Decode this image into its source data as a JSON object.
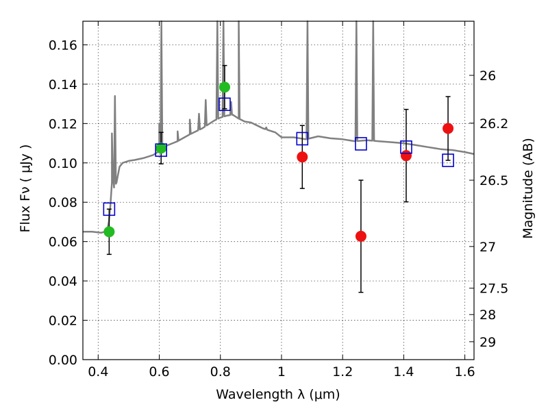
{
  "chart_data": {
    "type": "scatter",
    "xlabel": "Wavelength  λ (μm)",
    "ylabel": "Flux  Fν  ( μJy )",
    "ylabel_right": "Magnitude (AB)",
    "xlim": [
      0.35,
      1.63
    ],
    "ylim": [
      0.0,
      0.172
    ],
    "x_ticks": [
      0.4,
      0.6,
      0.8,
      1.0,
      1.2,
      1.4,
      1.6
    ],
    "x_tick_labels": [
      "0.4",
      "0.6",
      "0.8",
      "1",
      "1.2",
      "1.4",
      "1.6"
    ],
    "y_ticks": [
      0.0,
      0.02,
      0.04,
      0.06,
      0.08,
      0.1,
      0.12,
      0.14,
      0.16
    ],
    "y_tick_labels": [
      "0.00",
      "0.02",
      "0.04",
      "0.06",
      "0.08",
      "0.10",
      "0.12",
      "0.14",
      "0.16"
    ],
    "right_ticks": [
      {
        "label": "26",
        "flux": 0.1445
      },
      {
        "label": "26.2",
        "flux": 0.1202
      },
      {
        "label": "26.5",
        "flux": 0.0912
      },
      {
        "label": "27",
        "flux": 0.0575
      },
      {
        "label": "27.5",
        "flux": 0.0363
      },
      {
        "label": "28",
        "flux": 0.0229
      },
      {
        "label": "29",
        "flux": 0.0091
      }
    ],
    "grid": true,
    "series": [
      {
        "marker": "circle",
        "color": "#22bb22",
        "points": [
          {
            "x": 0.436,
            "y": 0.065,
            "err": 0.0115
          },
          {
            "x": 0.606,
            "y": 0.1075,
            "err": 0.008
          },
          {
            "x": 0.814,
            "y": 0.1385,
            "err": 0.011
          }
        ]
      },
      {
        "marker": "circle",
        "color": "#ee1111",
        "points": [
          {
            "x": 1.068,
            "y": 0.103,
            "err": 0.016
          },
          {
            "x": 1.26,
            "y": 0.0627,
            "err": 0.0285
          },
          {
            "x": 1.408,
            "y": 0.1037,
            "err": 0.0235
          },
          {
            "x": 1.545,
            "y": 0.1175,
            "err": 0.0162
          }
        ]
      },
      {
        "marker": "square",
        "color": "#0000cc",
        "points": [
          {
            "x": 0.436,
            "y": 0.0765
          },
          {
            "x": 0.606,
            "y": 0.1065
          },
          {
            "x": 0.814,
            "y": 0.1298
          },
          {
            "x": 1.068,
            "y": 0.1123
          },
          {
            "x": 1.26,
            "y": 0.1097
          },
          {
            "x": 1.408,
            "y": 0.108
          },
          {
            "x": 1.545,
            "y": 0.1013
          }
        ]
      }
    ],
    "spectrum": {
      "color": "#808080",
      "x": [
        0.35,
        0.38,
        0.41,
        0.425,
        0.43,
        0.435,
        0.44,
        0.445,
        0.448,
        0.452,
        0.46,
        0.47,
        0.48,
        0.5,
        0.52,
        0.55,
        0.58,
        0.6,
        0.62,
        0.66,
        0.7,
        0.74,
        0.78,
        0.8,
        0.82,
        0.84,
        0.86,
        0.88,
        0.9,
        0.94,
        0.98,
        1.0,
        1.04,
        1.08,
        1.12,
        1.16,
        1.2,
        1.24,
        1.28,
        1.32,
        1.36,
        1.4,
        1.44,
        1.48,
        1.52,
        1.56,
        1.6,
        1.63
      ],
      "y": [
        0.065,
        0.065,
        0.0645,
        0.0652,
        0.066,
        0.07,
        0.078,
        0.09,
        0.094,
        0.0875,
        0.09,
        0.098,
        0.1,
        0.101,
        0.1015,
        0.1025,
        0.104,
        0.106,
        0.1085,
        0.111,
        0.1145,
        0.1175,
        0.1215,
        0.123,
        0.124,
        0.1245,
        0.1225,
        0.121,
        0.1205,
        0.1175,
        0.1155,
        0.113,
        0.113,
        0.112,
        0.1135,
        0.1125,
        0.112,
        0.111,
        0.1115,
        0.111,
        0.1105,
        0.11,
        0.109,
        0.108,
        0.107,
        0.1065,
        0.1055,
        0.1045
      ],
      "spikes": [
        {
          "x": 0.445,
          "h": 0.115
        },
        {
          "x": 0.455,
          "h": 0.134
        },
        {
          "x": 0.6,
          "h": 0.12
        },
        {
          "x": 0.607,
          "h": 0.172
        },
        {
          "x": 0.66,
          "h": 0.116
        },
        {
          "x": 0.7,
          "h": 0.122
        },
        {
          "x": 0.73,
          "h": 0.125
        },
        {
          "x": 0.752,
          "h": 0.132
        },
        {
          "x": 0.79,
          "h": 0.172
        },
        {
          "x": 0.81,
          "h": 0.172
        },
        {
          "x": 0.835,
          "h": 0.131
        },
        {
          "x": 0.86,
          "h": 0.172
        },
        {
          "x": 0.95,
          "h": 0.118
        },
        {
          "x": 1.085,
          "h": 0.172
        },
        {
          "x": 1.245,
          "h": 0.172
        },
        {
          "x": 1.3,
          "h": 0.172
        }
      ]
    }
  }
}
